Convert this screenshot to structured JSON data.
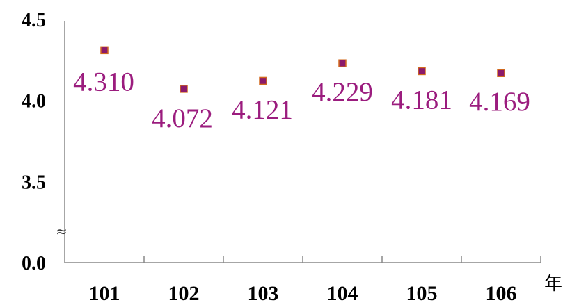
{
  "chart_data": {
    "type": "scatter",
    "categories": [
      "101",
      "102",
      "103",
      "104",
      "105",
      "106"
    ],
    "values": [
      4.31,
      4.072,
      4.121,
      4.229,
      4.181,
      4.169
    ],
    "data_labels": [
      "4.310",
      "4.072",
      "4.121",
      "4.229",
      "4.181",
      "4.169"
    ],
    "xlabel": "年",
    "ylabel": "",
    "title": "",
    "y_ticks": [
      "4.5",
      "4.0",
      "3.5",
      "0.0"
    ],
    "y_tick_values": [
      4.5,
      4.0,
      3.5,
      0.0
    ],
    "ylim_upper_segment": [
      3.0,
      4.5
    ],
    "axis_break_symbol": "≈",
    "grid": false,
    "legend": "none",
    "marker_color": "#8B1A6B",
    "marker_edge_color": "#D2691E",
    "label_color": "#9B1C7E",
    "axis_color": "#888888"
  }
}
